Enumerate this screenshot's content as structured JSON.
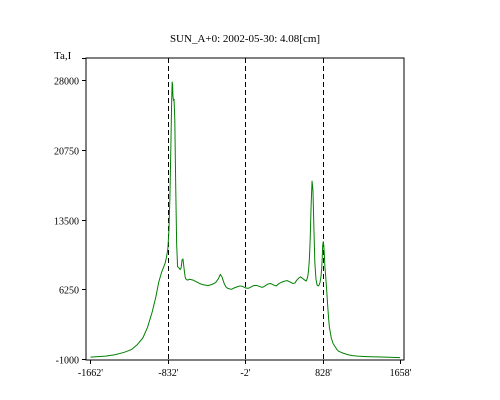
{
  "chart_data": {
    "type": "line",
    "title": "SUN_A+0: 2002-05-30: 4.08[cm]",
    "xlabel": "",
    "ylabel": "Ta,I",
    "xlim": [
      -1710,
      1700
    ],
    "ylim": [
      -1100,
      30300
    ],
    "x_ticks": [
      -1662,
      -832,
      -2,
      828,
      1658
    ],
    "x_tick_labels": [
      "-1662'",
      "-832'",
      "-2'",
      "828'",
      "1658'"
    ],
    "y_ticks": [
      -1000,
      6250,
      13500,
      20750,
      28000
    ],
    "y_tick_labels": [
      "-1000",
      "6250",
      "13500",
      "20750",
      "28000"
    ],
    "vlines": [
      -832,
      -2,
      828
    ],
    "vline_style": "dashed",
    "grid": false,
    "series": [
      {
        "color": "#008000",
        "x": [
          -1662,
          -1500,
          -1400,
          -1300,
          -1220,
          -1160,
          -1100,
          -1050,
          -1000,
          -960,
          -930,
          -900,
          -880,
          -860,
          -845,
          -832,
          -820,
          -810,
          -800,
          -792,
          -786,
          -781,
          -778,
          -772,
          -766,
          -758,
          -748,
          -738,
          -728,
          -715,
          -700,
          -690,
          -680,
          -670,
          -662,
          -652,
          -644,
          -636,
          -620,
          -600,
          -560,
          -520,
          -480,
          -440,
          -400,
          -360,
          -320,
          -290,
          -270,
          -250,
          -230,
          -210,
          -190,
          -170,
          -150,
          -120,
          -90,
          -60,
          -30,
          -2,
          30,
          60,
          90,
          120,
          150,
          180,
          210,
          240,
          270,
          300,
          330,
          360,
          390,
          420,
          450,
          480,
          510,
          530,
          550,
          570,
          590,
          610,
          630,
          650,
          660,
          670,
          678,
          686,
          694,
          704,
          714,
          724,
          734,
          744,
          756,
          768,
          780,
          790,
          800,
          810,
          818,
          824,
          828,
          834,
          840,
          846,
          852,
          860,
          870,
          880,
          890,
          900,
          920,
          940,
          960,
          980,
          1000,
          1050,
          1100,
          1150,
          1200,
          1300,
          1400,
          1500,
          1658
        ],
        "y": [
          -800,
          -700,
          -550,
          -300,
          0,
          500,
          1200,
          2300,
          3900,
          5500,
          7000,
          8000,
          8500,
          9000,
          9700,
          10500,
          12500,
          16000,
          21000,
          25500,
          27800,
          27500,
          26400,
          25900,
          26000,
          24000,
          17000,
          11000,
          8600,
          8500,
          8300,
          8500,
          9300,
          9400,
          8700,
          7900,
          7400,
          7300,
          7200,
          7300,
          7200,
          7000,
          6800,
          6700,
          6650,
          6750,
          6950,
          7350,
          7800,
          7500,
          6900,
          6500,
          6350,
          6300,
          6250,
          6400,
          6500,
          6600,
          6550,
          6400,
          6350,
          6500,
          6650,
          6650,
          6550,
          6450,
          6600,
          6800,
          6850,
          6700,
          6600,
          6850,
          7000,
          7100,
          7150,
          7000,
          6850,
          6900,
          7200,
          7400,
          7550,
          7400,
          7250,
          7100,
          7300,
          7700,
          8400,
          9500,
          11500,
          15000,
          17500,
          16500,
          12500,
          9000,
          7300,
          6700,
          6600,
          6700,
          7000,
          7600,
          8500,
          9700,
          10800,
          11200,
          10800,
          9800,
          8600,
          7600,
          6300,
          4800,
          3400,
          2300,
          1200,
          600,
          300,
          0,
          -200,
          -400,
          -550,
          -650,
          -700,
          -750,
          -780,
          -800,
          -850
        ]
      }
    ]
  }
}
